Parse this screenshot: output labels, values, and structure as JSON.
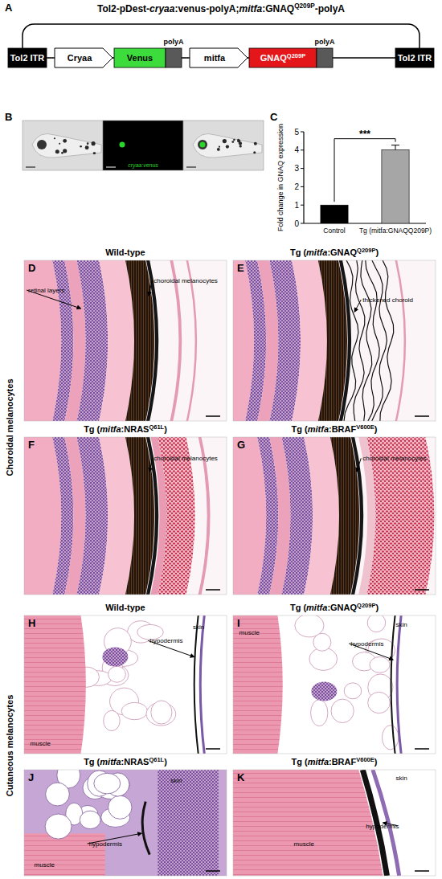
{
  "A": {
    "letter": "A",
    "title": [
      {
        "t": "Tol2-pDest-"
      },
      {
        "t": "cryaa",
        "i": true
      },
      {
        "t": ":venus-polyA;"
      },
      {
        "t": "mitfa",
        "i": true
      },
      {
        "t": ":GNAQ"
      },
      {
        "t": "Q209P",
        "sup": true
      },
      {
        "t": "-polyA"
      }
    ],
    "elements": [
      {
        "label": [
          {
            "t": "Tol2 ITR"
          }
        ],
        "color": "#000000"
      },
      {
        "label": [
          {
            "t": "Cryaa"
          }
        ],
        "color": "#ffffff"
      },
      {
        "label": [
          {
            "t": "Venus"
          }
        ],
        "color": "#3ddc3d"
      },
      {
        "label": [
          {
            "t": "polyA"
          }
        ],
        "color": "#595959"
      },
      {
        "label": [
          {
            "t": "mitfa"
          }
        ],
        "color": "#ffffff"
      },
      {
        "label": [
          {
            "t": "GNAQ"
          },
          {
            "t": "Q209P",
            "sup": true
          }
        ],
        "color": "#e5161a"
      },
      {
        "label": [
          {
            "t": "polyA"
          }
        ],
        "color": "#595959"
      },
      {
        "label": [
          {
            "t": "Tol2 ITR"
          }
        ],
        "color": "#000000"
      }
    ]
  },
  "B": {
    "letter": "B",
    "label": "cryaa:venus"
  },
  "C": {
    "letter": "C"
  },
  "chart_data": {
    "type": "bar",
    "categories": [
      "Control",
      "Tg (mitfa:GNAQQ209P)"
    ],
    "values": [
      1,
      4.02
    ],
    "errors": [
      0,
      0.25
    ],
    "colors": [
      "#000000",
      "#a6a6a6"
    ],
    "ylabel": "Fold change in GNAQ expression",
    "ylim": [
      0,
      5
    ],
    "yticks": [
      0,
      1,
      2,
      3,
      4,
      5
    ],
    "annotations": [
      "***"
    ]
  },
  "sections": [
    {
      "label": "Choroidal melanocytes",
      "panels": [
        {
          "letter": "D",
          "header": [
            {
              "t": "Wild-type"
            }
          ],
          "annotations": [
            "retinal layers",
            "choroidal melanocytes"
          ]
        },
        {
          "letter": "E",
          "header": [
            {
              "t": "Tg ("
            },
            {
              "t": "mitfa",
              "i": true
            },
            {
              "t": ":GNAQ"
            },
            {
              "t": "Q209P",
              "sup": true
            },
            {
              "t": ")"
            }
          ],
          "annotations": [
            "thickened choroid"
          ]
        },
        {
          "letter": "F",
          "header": [
            {
              "t": "Tg ("
            },
            {
              "t": "mitfa",
              "i": true
            },
            {
              "t": ":NRAS"
            },
            {
              "t": "Q61L",
              "sup": true
            },
            {
              "t": ")"
            }
          ],
          "annotations": [
            "choroidal melanocytes"
          ]
        },
        {
          "letter": "G",
          "header": [
            {
              "t": "Tg ("
            },
            {
              "t": "mitfa",
              "i": true
            },
            {
              "t": ":BRAF"
            },
            {
              "t": "V600E",
              "sup": true
            },
            {
              "t": ")"
            }
          ],
          "annotations": [
            "choroidal melanocytes"
          ]
        }
      ]
    },
    {
      "label": "Cutaneous melanocytes",
      "panels": [
        {
          "letter": "H",
          "header": [
            {
              "t": "Wild-type"
            }
          ],
          "annotations": [
            "skin",
            "hypodermis",
            "muscle"
          ]
        },
        {
          "letter": "I",
          "header": [
            {
              "t": "Tg ("
            },
            {
              "t": "mitfa",
              "i": true
            },
            {
              "t": ":GNAQ"
            },
            {
              "t": "Q209P",
              "sup": true
            },
            {
              "t": ")"
            }
          ],
          "annotations": [
            "skin",
            "hypodermis",
            "muscle"
          ]
        },
        {
          "letter": "J",
          "header": [
            {
              "t": "Tg ("
            },
            {
              "t": "mitfa",
              "i": true
            },
            {
              "t": ":NRAS"
            },
            {
              "t": "Q61L",
              "sup": true
            },
            {
              "t": ")"
            }
          ],
          "annotations": [
            "skin",
            "hypodermis",
            "muscle"
          ]
        },
        {
          "letter": "K",
          "header": [
            {
              "t": "Tg ("
            },
            {
              "t": "mitfa",
              "i": true
            },
            {
              "t": ":BRAF"
            },
            {
              "t": "V600E",
              "sup": true
            },
            {
              "t": ")"
            }
          ],
          "annotations": [
            "skin",
            "hypodermis",
            "muscle"
          ]
        }
      ]
    }
  ]
}
